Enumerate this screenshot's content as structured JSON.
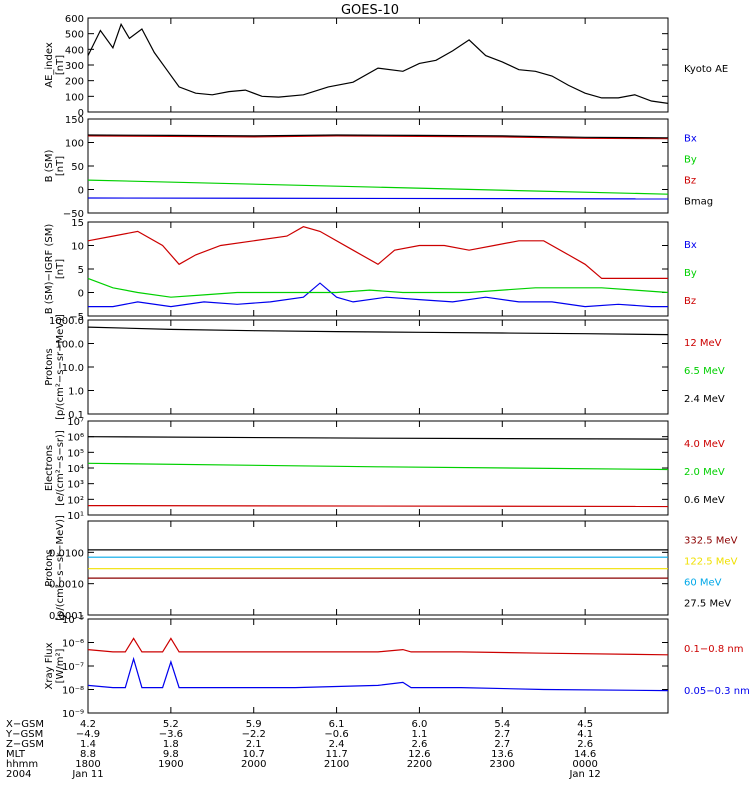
{
  "page_title": "GOES-10",
  "colors": {
    "black": "#000000",
    "red": "#cc0000",
    "darkred": "#8b0000",
    "green": "#00d000",
    "blue": "#0000ee",
    "cyan": "#00a8e8",
    "yellow": "#f0e000"
  },
  "chart_data": [
    {
      "type": "line",
      "id": "ae",
      "ylabel": [
        "AE_index",
        "[nT]"
      ],
      "scale": "linear",
      "ylim": [
        0,
        600
      ],
      "ticks": [
        0,
        100,
        200,
        300,
        400,
        500,
        600
      ],
      "tick_labels": [
        "0",
        "100",
        "200",
        "300",
        "400",
        "500",
        "600"
      ],
      "series": [
        {
          "name": "Kyoto AE",
          "color": "#000000",
          "x": [
            0,
            0.15,
            0.3,
            0.4,
            0.5,
            0.65,
            0.8,
            0.95,
            1.1,
            1.3,
            1.5,
            1.7,
            1.9,
            2.1,
            2.3,
            2.6,
            2.9,
            3.2,
            3.5,
            3.8,
            4.0,
            4.2,
            4.4,
            4.6,
            4.8,
            5.0,
            5.2,
            5.4,
            5.6,
            5.8,
            6.0,
            6.2,
            6.4,
            6.6,
            6.8,
            7.0
          ],
          "y": [
            360,
            520,
            410,
            560,
            470,
            530,
            380,
            270,
            160,
            120,
            110,
            130,
            140,
            100,
            95,
            110,
            160,
            190,
            280,
            260,
            310,
            330,
            390,
            460,
            360,
            320,
            270,
            260,
            230,
            170,
            120,
            90,
            90,
            110,
            70,
            55
          ]
        }
      ]
    },
    {
      "type": "line",
      "id": "bsm",
      "ylabel": [
        "B (SM)",
        "[nT]"
      ],
      "scale": "linear",
      "ylim": [
        -50,
        150
      ],
      "ticks": [
        -50,
        0,
        50,
        100,
        150
      ],
      "tick_labels": [
        "−50",
        "0",
        "50",
        "100",
        "150"
      ],
      "series": [
        {
          "name": "Bx",
          "color": "#0000ee",
          "x": [
            0,
            7
          ],
          "y": [
            -18,
            -20
          ]
        },
        {
          "name": "By",
          "color": "#00d000",
          "x": [
            0,
            3.5,
            7
          ],
          "y": [
            20,
            5,
            -10
          ]
        },
        {
          "name": "Bz",
          "color": "#cc0000",
          "x": [
            0,
            1,
            2,
            3,
            4,
            5,
            6,
            7
          ],
          "y": [
            114,
            113,
            112,
            114,
            113,
            112,
            109,
            108
          ]
        },
        {
          "name": "Bmag",
          "color": "#000000",
          "x": [
            0,
            1,
            2,
            3,
            4,
            5,
            6,
            7
          ],
          "y": [
            116,
            115,
            114,
            116,
            115,
            114,
            111,
            110
          ]
        }
      ]
    },
    {
      "type": "line",
      "id": "dbsm",
      "ylabel": [
        "B (SM)−IGRF (SM)",
        "[nT]"
      ],
      "scale": "linear",
      "ylim": [
        -5,
        15
      ],
      "ticks": [
        -5,
        0,
        5,
        10,
        15
      ],
      "tick_labels": [
        "−5",
        "0",
        "5",
        "10",
        "15"
      ],
      "series": [
        {
          "name": "Bx",
          "color": "#0000ee",
          "x": [
            0,
            0.3,
            0.6,
            1.0,
            1.4,
            1.8,
            2.2,
            2.6,
            2.8,
            3.0,
            3.2,
            3.6,
            4.0,
            4.4,
            4.8,
            5.2,
            5.6,
            6.0,
            6.4,
            6.8,
            7.0
          ],
          "y": [
            -3,
            -3,
            -2,
            -3,
            -2,
            -2.5,
            -2,
            -1,
            2,
            -1,
            -2,
            -1,
            -1.5,
            -2,
            -1,
            -2,
            -2,
            -3,
            -2.5,
            -3,
            -3
          ]
        },
        {
          "name": "By",
          "color": "#00d000",
          "x": [
            0,
            0.3,
            0.6,
            1.0,
            1.4,
            1.8,
            2.2,
            2.6,
            3.0,
            3.4,
            3.8,
            4.2,
            4.6,
            5.0,
            5.4,
            5.8,
            6.2,
            6.6,
            7.0
          ],
          "y": [
            3,
            1,
            0,
            -1,
            -0.5,
            0,
            0,
            0,
            0,
            0.5,
            0,
            0,
            0,
            0.5,
            1,
            1,
            1,
            0.5,
            0
          ]
        },
        {
          "name": "Bz",
          "color": "#cc0000",
          "x": [
            0,
            0.3,
            0.6,
            0.9,
            1.1,
            1.3,
            1.6,
            2.0,
            2.4,
            2.6,
            2.8,
            3.2,
            3.5,
            3.7,
            4.0,
            4.3,
            4.6,
            4.9,
            5.2,
            5.5,
            5.8,
            6.0,
            6.2,
            6.6,
            7.0
          ],
          "y": [
            11,
            12,
            13,
            10,
            6,
            8,
            10,
            11,
            12,
            14,
            13,
            9,
            6,
            9,
            10,
            10,
            9,
            10,
            11,
            11,
            8,
            6,
            3,
            3,
            3
          ]
        }
      ]
    },
    {
      "type": "line",
      "id": "protons1",
      "ylabel": [
        "Protons",
        "[p/(cm²−s−sr−MeV)]"
      ],
      "scale": "log",
      "ylim": [
        0.1,
        1000
      ],
      "ticks": [
        0.1,
        1,
        10,
        100,
        1000
      ],
      "tick_labels": [
        "0.1",
        "1.0",
        "10.0",
        "100.0",
        "1000.0"
      ],
      "series": [
        {
          "name": "12 MeV",
          "color": "#cc0000",
          "x": [],
          "y": []
        },
        {
          "name": "6.5 MeV",
          "color": "#00d000",
          "x": [],
          "y": []
        },
        {
          "name": "2.4 MeV",
          "color": "#000000",
          "x": [
            0,
            1,
            2,
            3,
            4,
            5,
            6,
            7
          ],
          "y": [
            500,
            400,
            350,
            320,
            300,
            280,
            260,
            240
          ]
        }
      ]
    },
    {
      "type": "line",
      "id": "electrons",
      "ylabel": [
        "Electrons",
        "[e/(cm²−s−sr)]"
      ],
      "scale": "log",
      "ylim": [
        10,
        10000000
      ],
      "ticks": [
        10,
        100,
        1000,
        10000,
        100000,
        1000000,
        10000000
      ],
      "tick_labels": [
        "10¹",
        "10²",
        "10³",
        "10⁴",
        "10⁵",
        "10⁶",
        "10⁷"
      ],
      "series": [
        {
          "name": "4.0 MeV",
          "color": "#cc0000",
          "x": [
            0,
            7
          ],
          "y": [
            40,
            35
          ]
        },
        {
          "name": "2.0 MeV",
          "color": "#00d000",
          "x": [
            0,
            3.5,
            7
          ],
          "y": [
            20000,
            12000,
            8000
          ]
        },
        {
          "name": "0.6 MeV",
          "color": "#000000",
          "x": [
            0,
            3.5,
            7
          ],
          "y": [
            1000000,
            800000,
            700000
          ]
        }
      ]
    },
    {
      "type": "line",
      "id": "protons2",
      "ylabel": [
        "Protons",
        "[p/(cm²−s−sr−MeV)]"
      ],
      "scale": "log",
      "ylim": [
        0.0001,
        0.1
      ],
      "ticks": [
        0.0001,
        0.001,
        0.01
      ],
      "tick_labels": [
        "0.0001",
        "0.0010",
        "0.0100"
      ],
      "series": [
        {
          "name": "332.5 MeV",
          "color": "#8b0000",
          "x": [
            0,
            7
          ],
          "y": [
            0.0015,
            0.0015
          ]
        },
        {
          "name": "122.5 MeV",
          "color": "#f0e000",
          "x": [
            0,
            7
          ],
          "y": [
            0.003,
            0.003
          ]
        },
        {
          "name": "60 MeV",
          "color": "#00a8e8",
          "x": [
            0,
            7
          ],
          "y": [
            0.007,
            0.007
          ]
        },
        {
          "name": "27.5 MeV",
          "color": "#000000",
          "x": [
            0,
            7
          ],
          "y": [
            0.012,
            0.012
          ]
        }
      ]
    },
    {
      "type": "line",
      "id": "xray",
      "ylabel": [
        "Xray Flux",
        "[W/m²]"
      ],
      "scale": "log",
      "ylim": [
        1e-09,
        1e-05
      ],
      "ticks": [
        1e-09,
        1e-08,
        1e-07,
        1e-06,
        1e-05
      ],
      "tick_labels": [
        "10⁻⁹",
        "10⁻⁸",
        "10⁻⁷",
        "10⁻⁶",
        "10⁻⁵"
      ],
      "series": [
        {
          "name": "0.1−0.8 nm",
          "color": "#cc0000",
          "x": [
            0,
            0.3,
            0.45,
            0.55,
            0.65,
            0.8,
            0.9,
            1.0,
            1.1,
            1.2,
            1.5,
            2.5,
            3.5,
            3.8,
            3.9,
            4.5,
            5.5,
            7.0
          ],
          "y": [
            5e-07,
            4e-07,
            4e-07,
            1.5e-06,
            4e-07,
            4e-07,
            4e-07,
            1.5e-06,
            4e-07,
            4e-07,
            4e-07,
            4e-07,
            4e-07,
            5e-07,
            4e-07,
            4e-07,
            3.5e-07,
            3e-07
          ]
        },
        {
          "name": "0.05−0.3 nm",
          "color": "#0000ee",
          "x": [
            0,
            0.3,
            0.45,
            0.55,
            0.65,
            0.8,
            0.9,
            1.0,
            1.1,
            1.2,
            1.5,
            2.5,
            3.5,
            3.8,
            3.9,
            4.5,
            5.5,
            7.0
          ],
          "y": [
            1.5e-08,
            1.2e-08,
            1.2e-08,
            2e-07,
            1.2e-08,
            1.2e-08,
            1.2e-08,
            1.5e-07,
            1.2e-08,
            1.2e-08,
            1.2e-08,
            1.2e-08,
            1.5e-08,
            2e-08,
            1.2e-08,
            1.2e-08,
            1e-08,
            9e-09
          ]
        }
      ]
    }
  ],
  "xaxis": {
    "row_labels": [
      "X−GSM",
      "Y−GSM",
      "Z−GSM",
      "MLT",
      "hhmm",
      "2004"
    ],
    "columns": [
      [
        "4.2",
        "−4.9",
        "1.4",
        "8.8",
        "1800",
        "Jan 11"
      ],
      [
        "5.2",
        "−3.6",
        "1.8",
        "9.8",
        "1900",
        ""
      ],
      [
        "5.9",
        "−2.2",
        "2.1",
        "10.7",
        "2000",
        ""
      ],
      [
        "6.1",
        "−0.6",
        "2.4",
        "11.7",
        "2100",
        ""
      ],
      [
        "6.0",
        "1.1",
        "2.6",
        "12.6",
        "2200",
        ""
      ],
      [
        "5.4",
        "2.7",
        "2.7",
        "13.6",
        "2300",
        ""
      ],
      [
        "4.5",
        "4.1",
        "2.6",
        "14.6",
        "0000",
        "Jan 12"
      ]
    ]
  }
}
